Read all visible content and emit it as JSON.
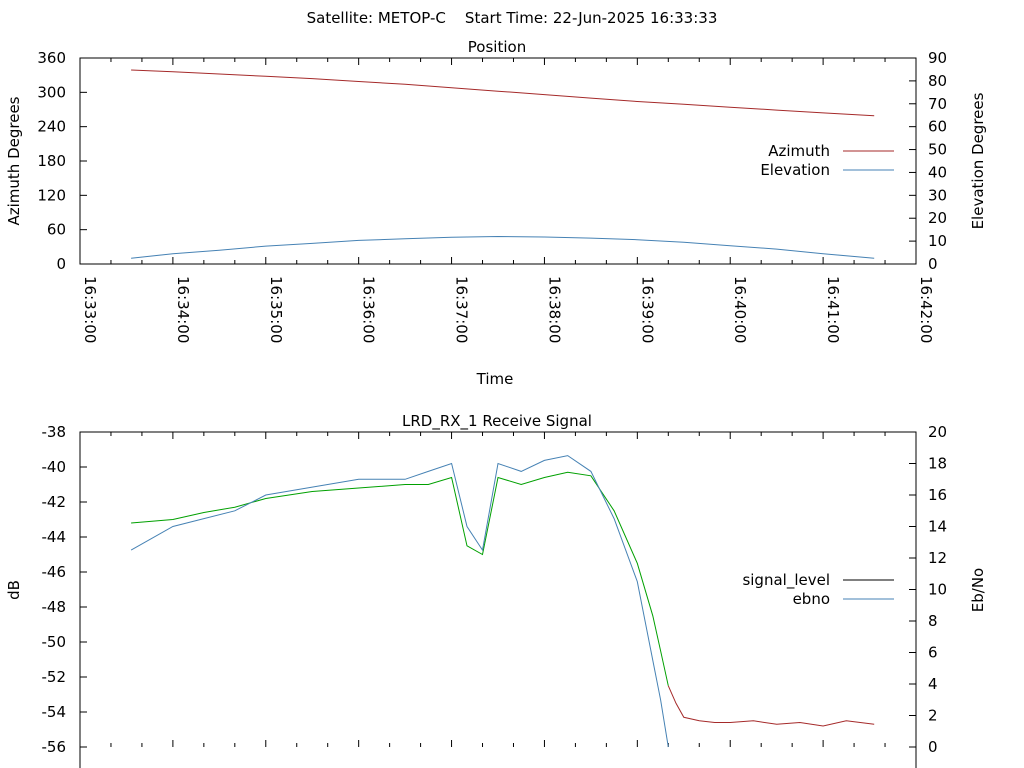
{
  "header": {
    "text": "Satellite: METOP-C    Start Time: 22-Jun-2025 16:33:33"
  },
  "chart_data": [
    {
      "type": "line",
      "title": "Position",
      "xlabel": "Time",
      "ylabel": "Azimuth Degrees",
      "y2label": "Elevation Degrees",
      "x_ticks": [
        "16:33:00",
        "16:34:00",
        "16:35:00",
        "16:36:00",
        "16:37:00",
        "16:38:00",
        "16:39:00",
        "16:40:00",
        "16:41:00",
        "16:42:00"
      ],
      "xlim": [
        "16:33:00",
        "16:42:00"
      ],
      "ylim": [
        0,
        360
      ],
      "y_ticks": [
        0,
        60,
        120,
        180,
        240,
        300,
        360
      ],
      "y2lim": [
        0,
        90
      ],
      "y2_ticks": [
        0,
        10,
        20,
        30,
        40,
        50,
        60,
        70,
        80,
        90
      ],
      "grid": false,
      "legend_position": "right",
      "series": [
        {
          "name": "Azimuth",
          "axis": "left",
          "color": "#a52a2a",
          "x": [
            "16:33:33",
            "16:34:00",
            "16:34:30",
            "16:35:00",
            "16:35:30",
            "16:36:00",
            "16:36:30",
            "16:37:00",
            "16:37:30",
            "16:38:00",
            "16:38:30",
            "16:39:00",
            "16:39:30",
            "16:40:00",
            "16:40:30",
            "16:41:00",
            "16:41:33"
          ],
          "y": [
            339,
            336,
            332,
            328,
            324,
            319,
            314,
            308,
            302,
            296,
            290,
            284,
            279,
            274,
            269,
            264,
            259
          ]
        },
        {
          "name": "Elevation",
          "axis": "right",
          "color": "#4682b4",
          "x": [
            "16:33:33",
            "16:34:00",
            "16:34:30",
            "16:35:00",
            "16:35:30",
            "16:36:00",
            "16:36:30",
            "16:37:00",
            "16:37:30",
            "16:38:00",
            "16:38:30",
            "16:39:00",
            "16:39:30",
            "16:40:00",
            "16:40:30",
            "16:41:00",
            "16:41:33"
          ],
          "y": [
            2.5,
            4.5,
            6.0,
            7.8,
            9.0,
            10.3,
            11.0,
            11.7,
            12.0,
            11.8,
            11.3,
            10.6,
            9.5,
            8.0,
            6.5,
            4.5,
            2.5
          ]
        }
      ]
    },
    {
      "type": "line",
      "title": "LRD_RX_1 Receive Signal",
      "xlabel": "",
      "ylabel": "dB",
      "y2label": "Eb/No",
      "xlim": [
        "16:33:00",
        "16:42:00"
      ],
      "ylim": [
        -56,
        -38
      ],
      "y_ticks": [
        -56,
        -54,
        -52,
        -50,
        -48,
        -46,
        -44,
        -42,
        -40,
        -38
      ],
      "y2lim": [
        0,
        20
      ],
      "y2_ticks": [
        0,
        2,
        4,
        6,
        8,
        10,
        12,
        14,
        16,
        18,
        20
      ],
      "grid": false,
      "legend_position": "right",
      "legend": [
        {
          "name": "signal_level",
          "color": "#000000"
        },
        {
          "name": "ebno",
          "color": "#4682b4"
        }
      ],
      "series": [
        {
          "name": "signal_level",
          "axis": "left",
          "x": [
            "16:33:33",
            "16:34:00",
            "16:34:20",
            "16:34:40",
            "16:35:00",
            "16:35:30",
            "16:36:00",
            "16:36:30",
            "16:36:45",
            "16:37:00",
            "16:37:10",
            "16:37:20",
            "16:37:30",
            "16:37:45",
            "16:38:00",
            "16:38:15",
            "16:38:30",
            "16:38:45",
            "16:39:00",
            "16:39:10",
            "16:39:15",
            "16:39:20",
            "16:39:25",
            "16:39:30",
            "16:39:40",
            "16:39:50",
            "16:40:00",
            "16:40:15",
            "16:40:30",
            "16:40:45",
            "16:41:00",
            "16:41:15",
            "16:41:33"
          ],
          "y": [
            -43.2,
            -43.0,
            -42.6,
            -42.3,
            -41.8,
            -41.4,
            -41.2,
            -41.0,
            -41.0,
            -40.6,
            -44.5,
            -45.0,
            -40.6,
            -41.0,
            -40.6,
            -40.3,
            -40.5,
            -42.5,
            -45.5,
            -48.5,
            -50.5,
            -52.5,
            -53.5,
            -54.3,
            -54.5,
            -54.6,
            -54.6,
            -54.5,
            -54.7,
            -54.6,
            -54.8,
            -54.5,
            -54.7
          ],
          "segments": [
            {
              "from": "16:33:33",
              "to": "16:39:20",
              "color": "#00a000"
            },
            {
              "from": "16:39:20",
              "to": "16:41:33",
              "color": "#a52a2a"
            }
          ]
        },
        {
          "name": "ebno",
          "axis": "right",
          "color": "#4682b4",
          "x": [
            "16:33:33",
            "16:34:00",
            "16:34:20",
            "16:34:40",
            "16:35:00",
            "16:35:30",
            "16:36:00",
            "16:36:30",
            "16:36:45",
            "16:37:00",
            "16:37:10",
            "16:37:20",
            "16:37:30",
            "16:37:45",
            "16:38:00",
            "16:38:15",
            "16:38:30",
            "16:38:45",
            "16:39:00",
            "16:39:10",
            "16:39:15",
            "16:39:20"
          ],
          "y": [
            12.5,
            14.0,
            14.5,
            15.0,
            16.0,
            16.5,
            17.0,
            17.0,
            17.5,
            18.0,
            14.0,
            12.5,
            18.0,
            17.5,
            18.2,
            18.5,
            17.5,
            14.5,
            10.5,
            5.5,
            3.0,
            0.0
          ]
        }
      ]
    }
  ]
}
